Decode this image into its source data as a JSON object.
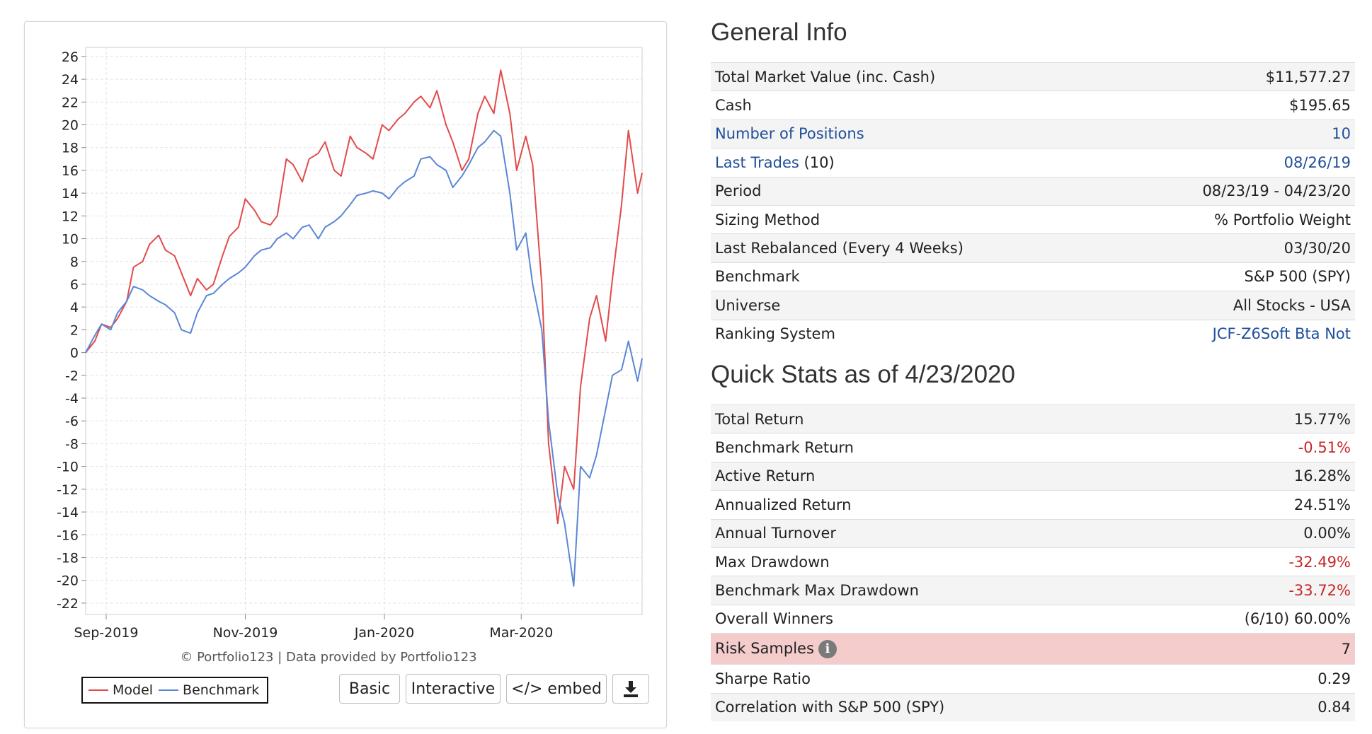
{
  "chart_data": {
    "type": "line",
    "x_tick_labels": [
      "Sep-2019",
      "Nov-2019",
      "Jan-2020",
      "Mar-2020"
    ],
    "x_tick_dates": [
      "2019-09-01",
      "2019-11-01",
      "2020-01-01",
      "2020-03-01"
    ],
    "x_range": [
      "2019-08-23",
      "2020-04-23"
    ],
    "ylim": [
      -23,
      26.8
    ],
    "y_ticks": [
      26,
      24,
      22,
      20,
      18,
      16,
      14,
      12,
      10,
      8,
      6,
      4,
      2,
      0,
      -2,
      -4,
      -6,
      -8,
      -10,
      -12,
      -14,
      -16,
      -18,
      -20,
      -22
    ],
    "grid": true,
    "credit": "© Portfolio123 | Data provided by Portfolio123",
    "legend_position": "bottom-left",
    "series": [
      {
        "name": "Model",
        "color": "#e34a4a",
        "points": [
          [
            "2019-08-23",
            0.0
          ],
          [
            "2019-08-27",
            1.0
          ],
          [
            "2019-08-30",
            2.5
          ],
          [
            "2019-09-03",
            2.2
          ],
          [
            "2019-09-06",
            3.0
          ],
          [
            "2019-09-10",
            4.5
          ],
          [
            "2019-09-13",
            7.5
          ],
          [
            "2019-09-17",
            8.0
          ],
          [
            "2019-09-20",
            9.5
          ],
          [
            "2019-09-24",
            10.3
          ],
          [
            "2019-09-27",
            9.0
          ],
          [
            "2019-10-01",
            8.5
          ],
          [
            "2019-10-04",
            7.0
          ],
          [
            "2019-10-08",
            5.0
          ],
          [
            "2019-10-11",
            6.5
          ],
          [
            "2019-10-15",
            5.5
          ],
          [
            "2019-10-18",
            6.0
          ],
          [
            "2019-10-22",
            8.5
          ],
          [
            "2019-10-25",
            10.2
          ],
          [
            "2019-10-29",
            11.0
          ],
          [
            "2019-11-01",
            13.5
          ],
          [
            "2019-11-05",
            12.5
          ],
          [
            "2019-11-08",
            11.5
          ],
          [
            "2019-11-12",
            11.2
          ],
          [
            "2019-11-15",
            12.0
          ],
          [
            "2019-11-19",
            17.0
          ],
          [
            "2019-11-22",
            16.5
          ],
          [
            "2019-11-26",
            15.0
          ],
          [
            "2019-11-29",
            17.0
          ],
          [
            "2019-12-03",
            17.5
          ],
          [
            "2019-12-06",
            18.5
          ],
          [
            "2019-12-10",
            16.0
          ],
          [
            "2019-12-13",
            15.5
          ],
          [
            "2019-12-17",
            19.0
          ],
          [
            "2019-12-20",
            18.0
          ],
          [
            "2019-12-24",
            17.5
          ],
          [
            "2019-12-27",
            17.0
          ],
          [
            "2019-12-31",
            20.0
          ],
          [
            "2020-01-03",
            19.5
          ],
          [
            "2020-01-07",
            20.5
          ],
          [
            "2020-01-10",
            21.0
          ],
          [
            "2020-01-14",
            22.0
          ],
          [
            "2020-01-17",
            22.5
          ],
          [
            "2020-01-21",
            21.5
          ],
          [
            "2020-01-24",
            23.0
          ],
          [
            "2020-01-28",
            20.0
          ],
          [
            "2020-01-31",
            18.5
          ],
          [
            "2020-02-04",
            16.0
          ],
          [
            "2020-02-07",
            17.0
          ],
          [
            "2020-02-11",
            21.0
          ],
          [
            "2020-02-14",
            22.5
          ],
          [
            "2020-02-18",
            21.0
          ],
          [
            "2020-02-21",
            24.8
          ],
          [
            "2020-02-25",
            21.0
          ],
          [
            "2020-02-28",
            16.0
          ],
          [
            "2020-03-03",
            19.0
          ],
          [
            "2020-03-06",
            16.5
          ],
          [
            "2020-03-10",
            6.0
          ],
          [
            "2020-03-13",
            -8.0
          ],
          [
            "2020-03-17",
            -15.0
          ],
          [
            "2020-03-20",
            -10.0
          ],
          [
            "2020-03-24",
            -12.0
          ],
          [
            "2020-03-27",
            -3.0
          ],
          [
            "2020-03-31",
            3.0
          ],
          [
            "2020-04-03",
            5.0
          ],
          [
            "2020-04-07",
            1.0
          ],
          [
            "2020-04-10",
            6.5
          ],
          [
            "2020-04-14",
            13.0
          ],
          [
            "2020-04-17",
            19.5
          ],
          [
            "2020-04-21",
            14.0
          ],
          [
            "2020-04-23",
            15.77
          ]
        ]
      },
      {
        "name": "Benchmark",
        "color": "#5b86d6",
        "points": [
          [
            "2019-08-23",
            0.0
          ],
          [
            "2019-08-27",
            1.5
          ],
          [
            "2019-08-30",
            2.5
          ],
          [
            "2019-09-03",
            2.0
          ],
          [
            "2019-09-06",
            3.5
          ],
          [
            "2019-09-10",
            4.5
          ],
          [
            "2019-09-13",
            5.8
          ],
          [
            "2019-09-17",
            5.5
          ],
          [
            "2019-09-20",
            5.0
          ],
          [
            "2019-09-24",
            4.5
          ],
          [
            "2019-09-27",
            4.2
          ],
          [
            "2019-10-01",
            3.5
          ],
          [
            "2019-10-04",
            2.0
          ],
          [
            "2019-10-08",
            1.7
          ],
          [
            "2019-10-11",
            3.5
          ],
          [
            "2019-10-15",
            5.0
          ],
          [
            "2019-10-18",
            5.2
          ],
          [
            "2019-10-22",
            6.0
          ],
          [
            "2019-10-25",
            6.5
          ],
          [
            "2019-10-29",
            7.0
          ],
          [
            "2019-11-01",
            7.5
          ],
          [
            "2019-11-05",
            8.5
          ],
          [
            "2019-11-08",
            9.0
          ],
          [
            "2019-11-12",
            9.2
          ],
          [
            "2019-11-15",
            10.0
          ],
          [
            "2019-11-19",
            10.5
          ],
          [
            "2019-11-22",
            10.0
          ],
          [
            "2019-11-26",
            11.0
          ],
          [
            "2019-11-29",
            11.2
          ],
          [
            "2019-12-03",
            10.0
          ],
          [
            "2019-12-06",
            11.0
          ],
          [
            "2019-12-10",
            11.5
          ],
          [
            "2019-12-13",
            12.0
          ],
          [
            "2019-12-17",
            13.0
          ],
          [
            "2019-12-20",
            13.8
          ],
          [
            "2019-12-24",
            14.0
          ],
          [
            "2019-12-27",
            14.2
          ],
          [
            "2019-12-31",
            14.0
          ],
          [
            "2020-01-03",
            13.5
          ],
          [
            "2020-01-07",
            14.5
          ],
          [
            "2020-01-10",
            15.0
          ],
          [
            "2020-01-14",
            15.5
          ],
          [
            "2020-01-17",
            17.0
          ],
          [
            "2020-01-21",
            17.2
          ],
          [
            "2020-01-24",
            16.5
          ],
          [
            "2020-01-28",
            16.0
          ],
          [
            "2020-01-31",
            14.5
          ],
          [
            "2020-02-04",
            15.5
          ],
          [
            "2020-02-07",
            16.5
          ],
          [
            "2020-02-11",
            18.0
          ],
          [
            "2020-02-14",
            18.5
          ],
          [
            "2020-02-18",
            19.5
          ],
          [
            "2020-02-21",
            19.0
          ],
          [
            "2020-02-25",
            14.0
          ],
          [
            "2020-02-28",
            9.0
          ],
          [
            "2020-03-03",
            10.5
          ],
          [
            "2020-03-06",
            6.0
          ],
          [
            "2020-03-10",
            2.0
          ],
          [
            "2020-03-13",
            -6.0
          ],
          [
            "2020-03-17",
            -12.5
          ],
          [
            "2020-03-20",
            -15.0
          ],
          [
            "2020-03-24",
            -20.5
          ],
          [
            "2020-03-27",
            -10.0
          ],
          [
            "2020-03-31",
            -11.0
          ],
          [
            "2020-04-03",
            -9.0
          ],
          [
            "2020-04-07",
            -5.0
          ],
          [
            "2020-04-10",
            -2.0
          ],
          [
            "2020-04-14",
            -1.5
          ],
          [
            "2020-04-17",
            1.0
          ],
          [
            "2020-04-21",
            -2.5
          ],
          [
            "2020-04-23",
            -0.51
          ]
        ]
      }
    ]
  },
  "chart_buttons": {
    "basic": "Basic",
    "interactive": "Interactive",
    "embed": "</> embed",
    "download_icon": "download-icon"
  },
  "general_info": {
    "title": "General Info",
    "rows": [
      {
        "label": "Total Market Value (inc. Cash)",
        "value": "$11,577.27"
      },
      {
        "label": "Cash",
        "value": "$195.65"
      },
      {
        "label": "Number of Positions",
        "value": "10"
      },
      {
        "label": "Last Trades",
        "label_suffix": " (10)",
        "value": "08/26/19"
      },
      {
        "label": "Period",
        "value": "08/23/19 - 04/23/20"
      },
      {
        "label": "Sizing Method",
        "value": "% Portfolio Weight"
      },
      {
        "label": "Last Rebalanced (Every 4 Weeks)",
        "value": "03/30/20"
      },
      {
        "label": "Benchmark",
        "value": "S&P 500 (SPY)"
      },
      {
        "label": "Universe",
        "value": "All Stocks - USA"
      },
      {
        "label": "Ranking System",
        "value": "JCF-Z6Soft Bta Not"
      }
    ]
  },
  "quick_stats": {
    "title": "Quick Stats as of 4/23/2020",
    "rows": [
      {
        "label": "Total Return",
        "value": "15.77%"
      },
      {
        "label": "Benchmark Return",
        "value": "-0.51%"
      },
      {
        "label": "Active Return",
        "value": "16.28%"
      },
      {
        "label": "Annualized Return",
        "value": "24.51%"
      },
      {
        "label": "Annual Turnover",
        "value": "0.00%"
      },
      {
        "label": "Max Drawdown",
        "value": "-32.49%"
      },
      {
        "label": "Benchmark Max Drawdown",
        "value": "-33.72%"
      },
      {
        "label": "Overall Winners",
        "value": "(6/10) 60.00%"
      },
      {
        "label": "Risk Samples",
        "value": "7",
        "icon": "info-icon"
      },
      {
        "label": "Sharpe Ratio",
        "value": "0.29"
      },
      {
        "label": "Correlation with S&P 500 (SPY)",
        "value": "0.84"
      }
    ]
  },
  "colors": {
    "link": "#1f4f9a",
    "negative": "#c62828",
    "highlight_row": "#f4cccc"
  }
}
